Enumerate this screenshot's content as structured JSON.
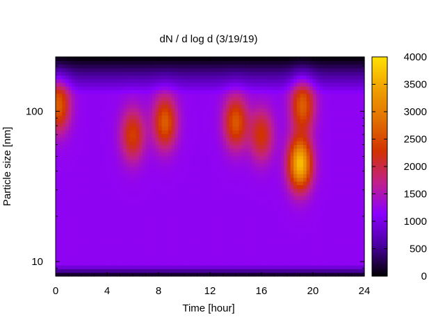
{
  "chart_data": {
    "type": "heatmap",
    "title": "dN / d log d (3/19/19)",
    "xlabel": "Time [hour]",
    "ylabel": "Particle size [nm]",
    "xlim": [
      0,
      24
    ],
    "ylim": [
      8,
      230
    ],
    "y_scale": "log",
    "x_ticks": [
      "0",
      "4",
      "8",
      "12",
      "16",
      "20",
      "24"
    ],
    "y_ticks": [
      {
        "value": 10,
        "label": "10"
      },
      {
        "value": 100,
        "label": "100"
      }
    ],
    "colorbar": {
      "range": [
        0,
        4000
      ],
      "ticks": [
        "0",
        "500",
        "1000",
        "1500",
        "2000",
        "2500",
        "3000",
        "3500",
        "4000"
      ],
      "palette": [
        "#000000",
        "#4b00a0",
        "#8a00ff",
        "#c0208a",
        "#d23200",
        "#e07000",
        "#f0a000",
        "#ffe000"
      ]
    },
    "background_level": 1200,
    "features": [
      {
        "time": 0.2,
        "size_nm": 110,
        "peak": 2700
      },
      {
        "time": 6.0,
        "size_nm": 70,
        "peak": 2400
      },
      {
        "time": 8.5,
        "size_nm": 85,
        "peak": 2700
      },
      {
        "time": 14.0,
        "size_nm": 85,
        "peak": 2650
      },
      {
        "time": 16.0,
        "size_nm": 70,
        "peak": 2300
      },
      {
        "time": 19.0,
        "size_nm": 45,
        "peak": 3700
      },
      {
        "time": 19.2,
        "size_nm": 110,
        "peak": 2700
      }
    ]
  }
}
